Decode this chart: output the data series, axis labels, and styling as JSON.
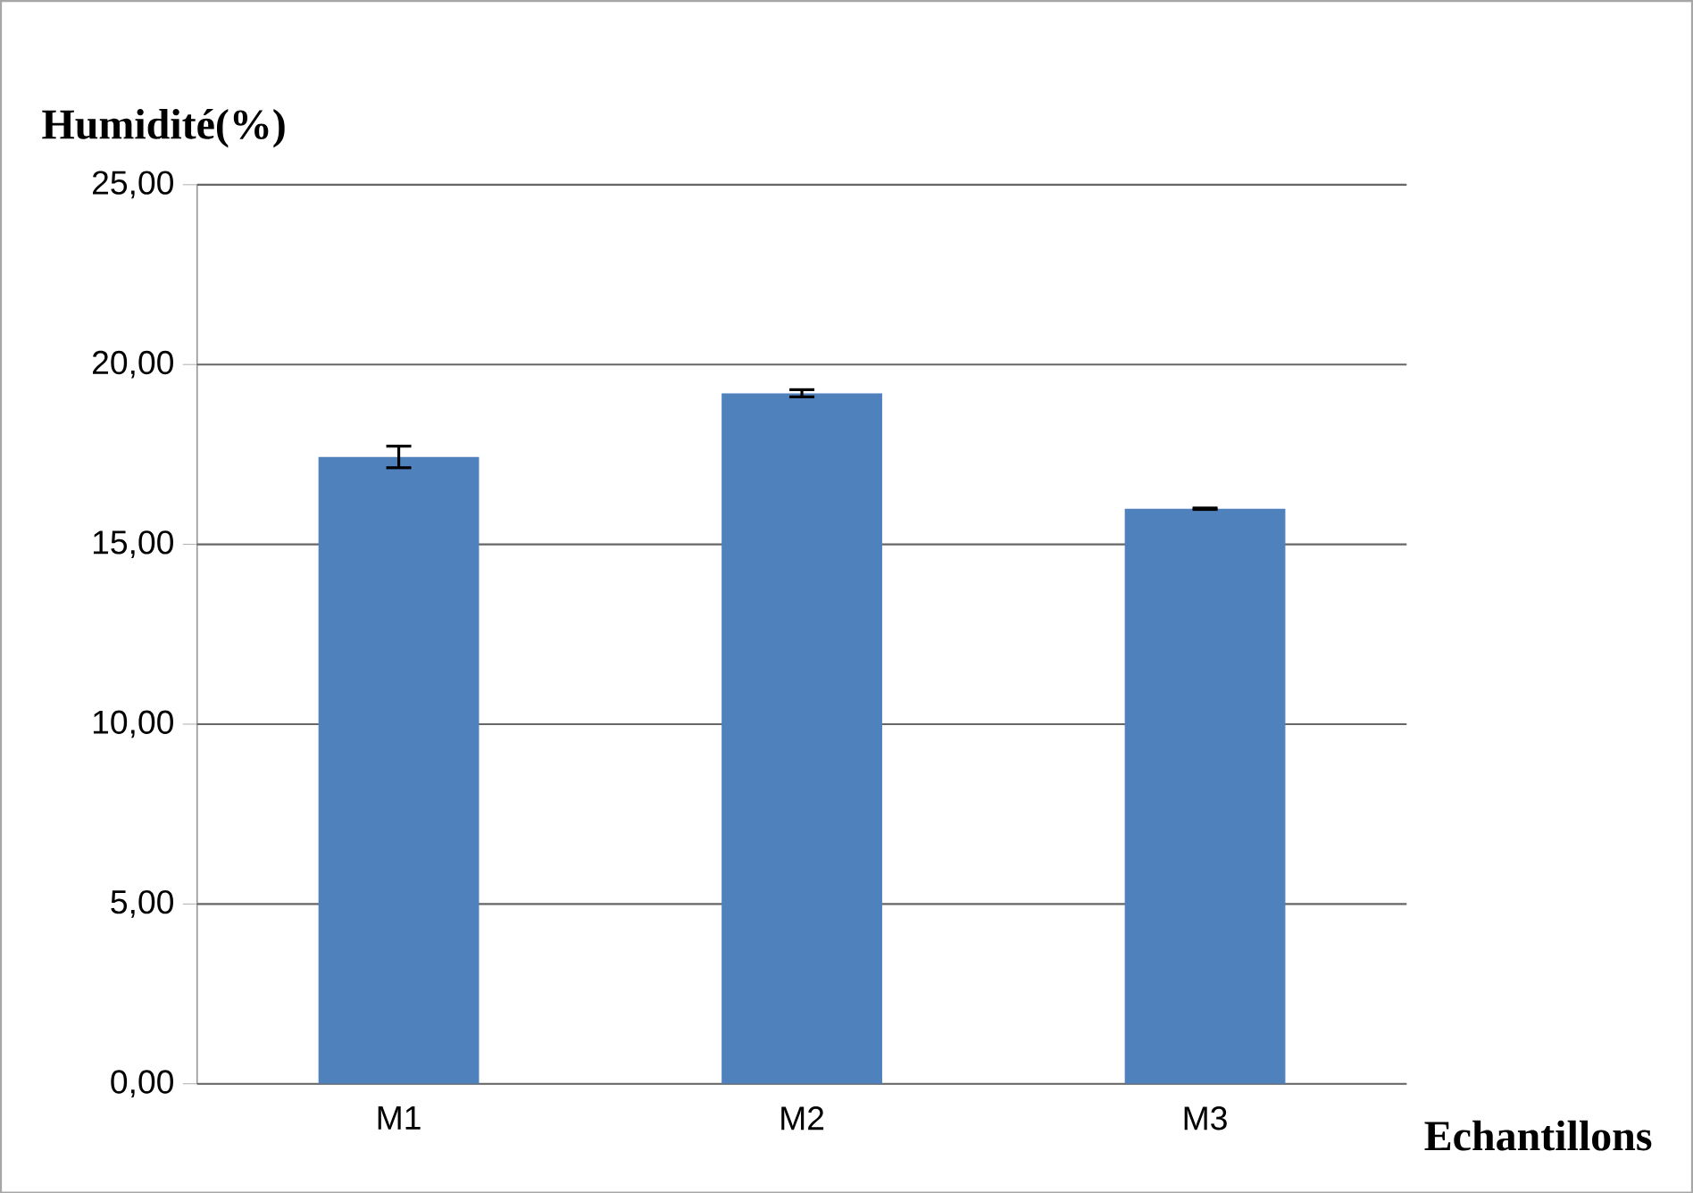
{
  "chart_data": {
    "type": "bar",
    "xlabel": "Echantillons",
    "ylabel": "Humidité(%)",
    "categories": [
      "M1",
      "M2",
      "M3"
    ],
    "series": [
      {
        "color": "#4f81bd",
        "values": [
          17.43,
          19.2,
          15.99
        ],
        "errors": [
          0.3,
          0.1,
          0.02
        ]
      }
    ],
    "ylim": [
      0,
      25
    ],
    "yticks": [
      {
        "value": 0,
        "label": "0,00"
      },
      {
        "value": 5,
        "label": "5,00"
      },
      {
        "value": 10,
        "label": "10,00"
      },
      {
        "value": 15,
        "label": "15,00"
      },
      {
        "value": 20,
        "label": "20,00"
      },
      {
        "value": 25,
        "label": "25,00"
      }
    ],
    "grid": "y"
  }
}
